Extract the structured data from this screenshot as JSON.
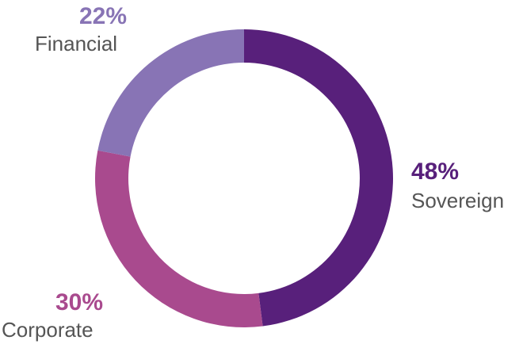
{
  "chart_data": {
    "type": "pie",
    "variant": "donut",
    "title": "",
    "slices": [
      {
        "label": "Sovereign",
        "value": 48,
        "value_label": "48%",
        "color": "#58207b"
      },
      {
        "label": "Corporate",
        "value": 30,
        "value_label": "30%",
        "color": "#a94a8e"
      },
      {
        "label": "Financial",
        "value": 22,
        "value_label": "22%",
        "color": "#8874b5"
      }
    ],
    "legend": "none"
  }
}
